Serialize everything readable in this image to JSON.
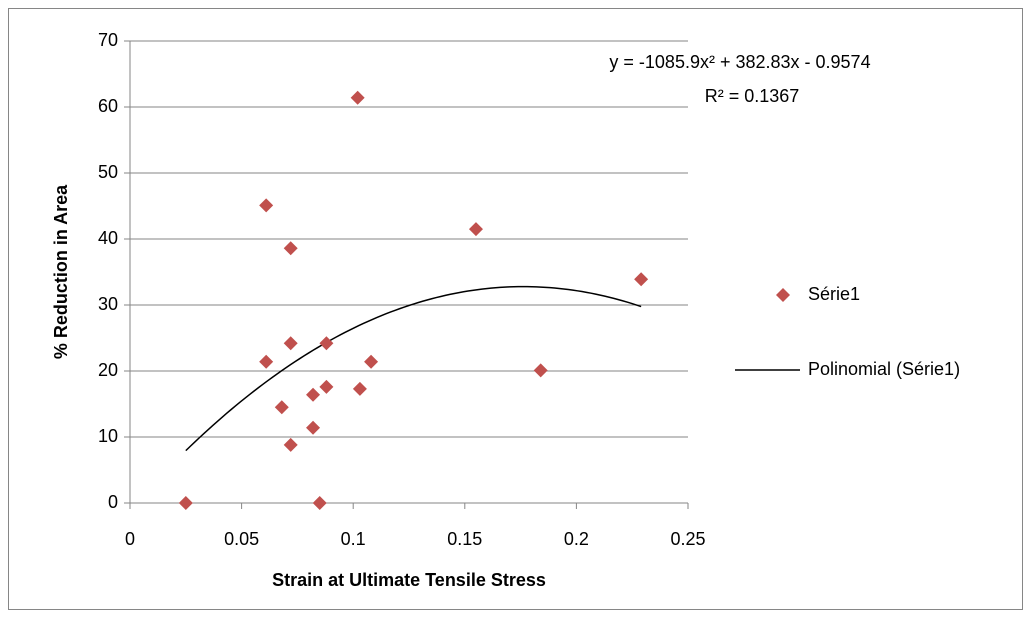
{
  "chart_data": {
    "type": "scatter",
    "x_label": "Strain at Ultimate Tensile Stress",
    "y_label": "% Reduction in Area",
    "x": [
      0.025,
      0.061,
      0.072,
      0.102,
      0.155,
      0.229,
      0.184,
      0.061,
      0.072,
      0.088,
      0.108,
      0.103,
      0.088,
      0.082,
      0.068,
      0.082,
      0.072,
      0.085
    ],
    "series": [
      {
        "name": "Série1",
        "color": "#c0504d",
        "values": [
          0,
          45.1,
          38.6,
          61.4,
          41.5,
          33.9,
          20.1,
          21.4,
          24.2,
          24.2,
          21.4,
          17.3,
          17.6,
          16.4,
          14.5,
          11.4,
          8.8,
          0
        ]
      }
    ],
    "trendline": {
      "name": "Polinomial (Série1)",
      "color": "#000000",
      "equation": "y = -1085.9x² + 382.83x - 0.9574",
      "r_squared": "R² = 0.1367",
      "coefficients": [
        -1085.9,
        382.83,
        -0.9574
      ]
    },
    "xlim": [
      0,
      0.25
    ],
    "xticks": [
      0,
      0.05,
      0.1,
      0.15,
      0.2,
      0.25
    ],
    "ylim": [
      0,
      70
    ],
    "yticks": [
      0,
      10,
      20,
      30,
      40,
      50,
      60,
      70
    ],
    "grid": true,
    "legend": "right"
  }
}
